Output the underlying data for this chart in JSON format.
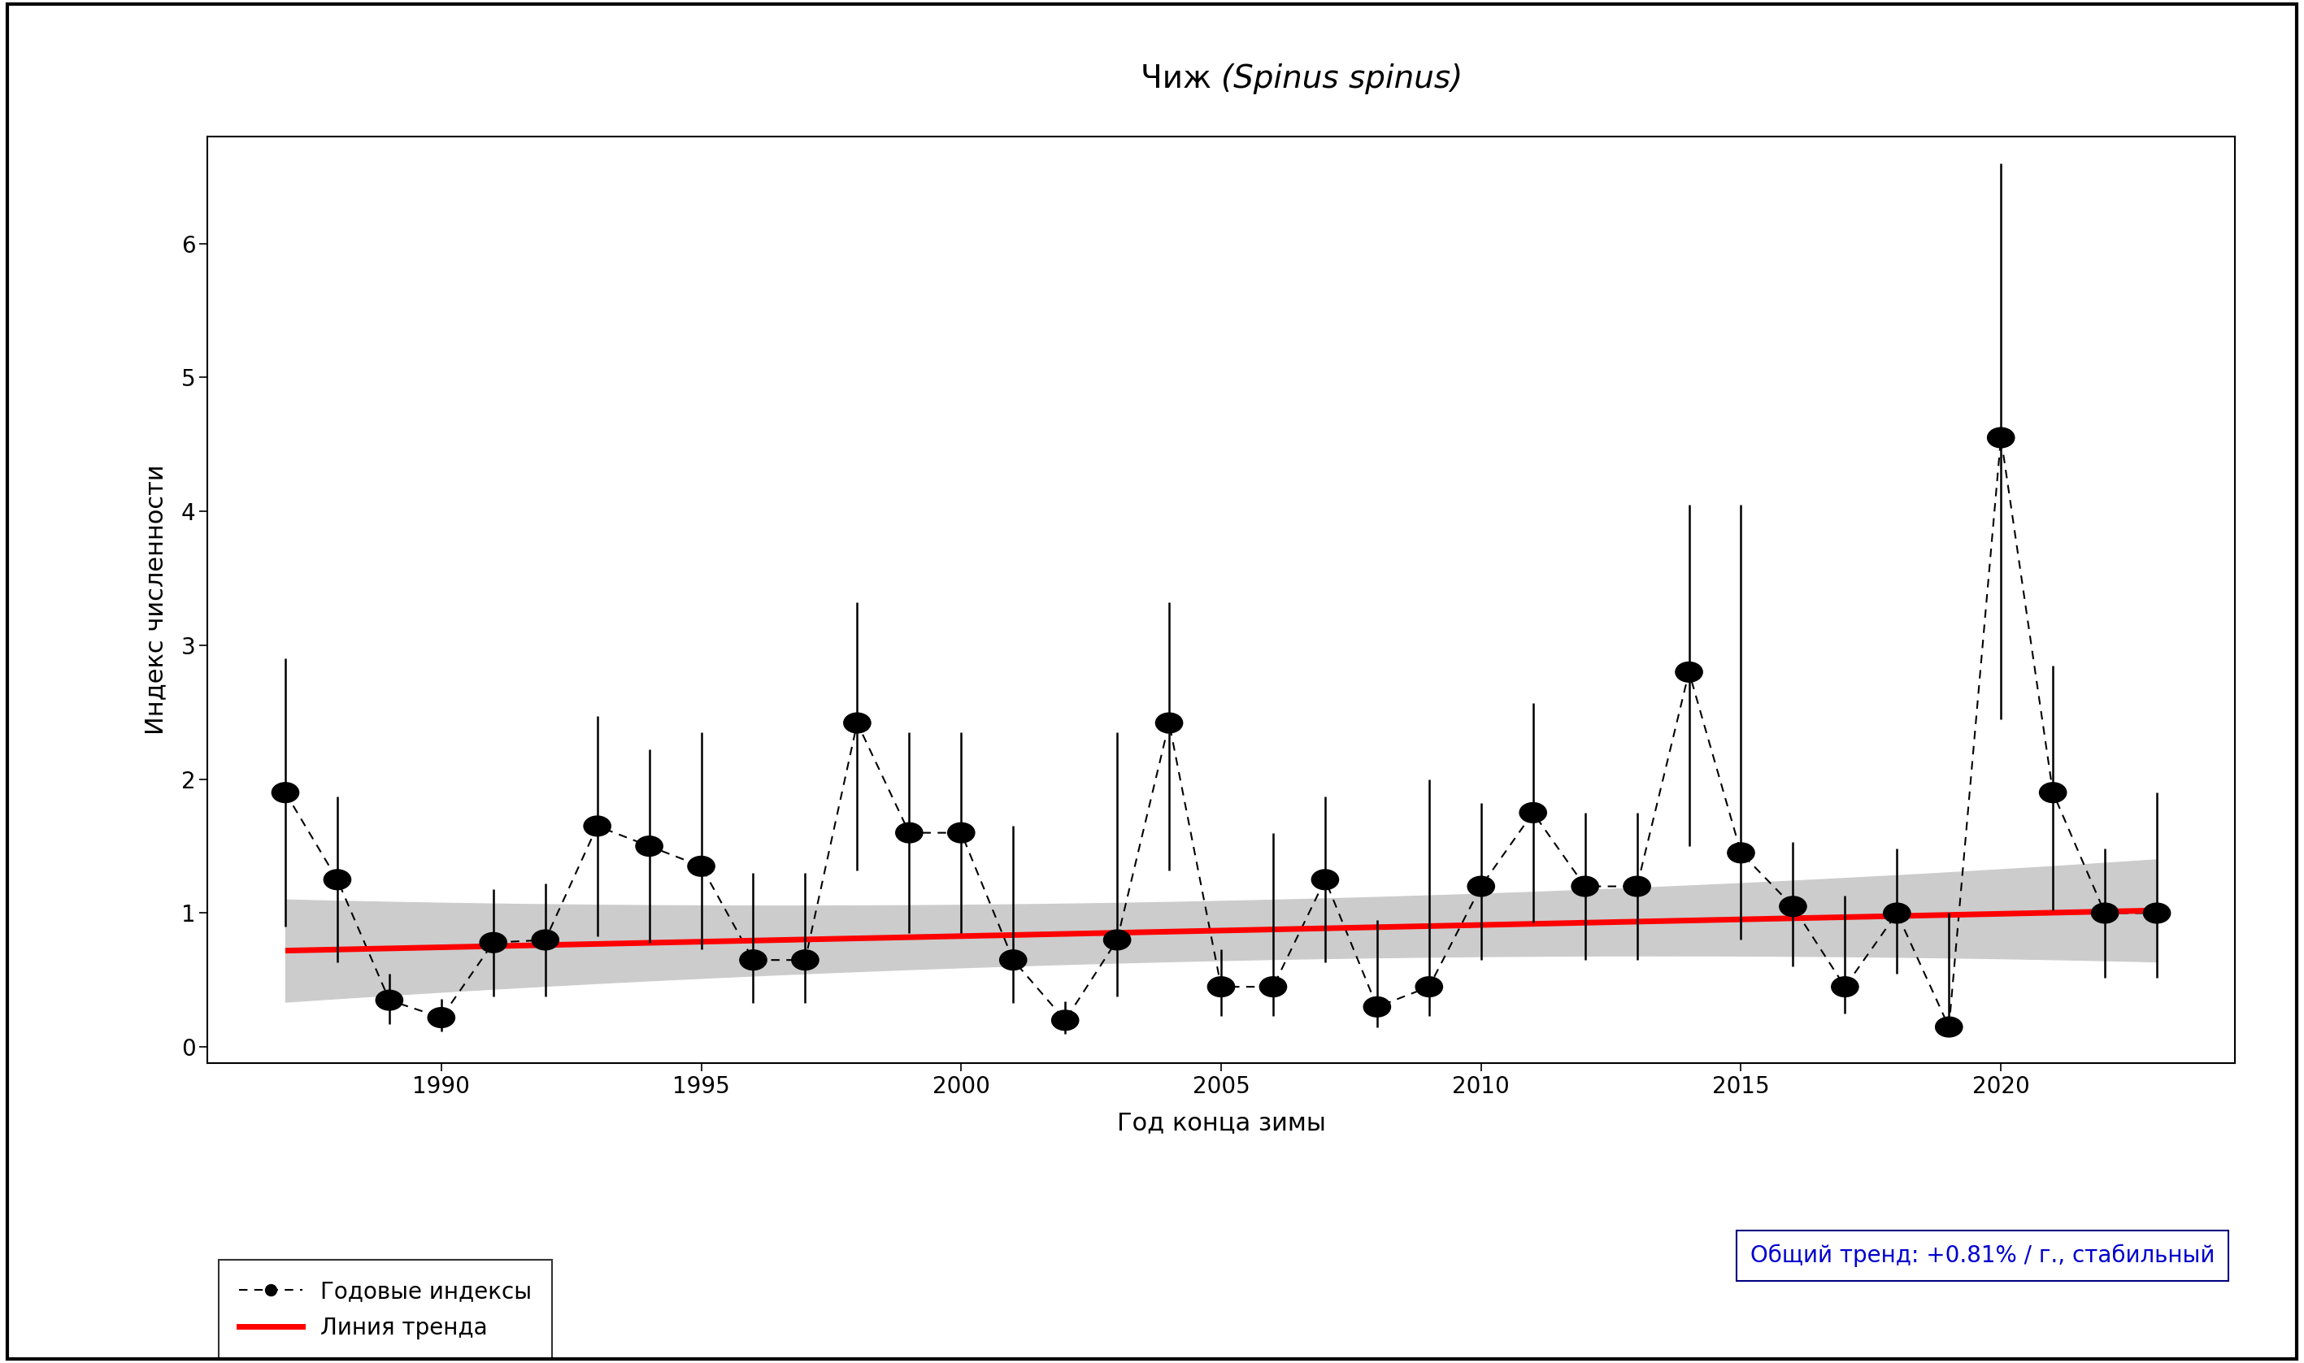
{
  "title_normal": "Чиж ",
  "title_italic": "(Spinus spinus)",
  "xlabel": "Год конца зимы",
  "ylabel": "Индекс численности",
  "years": [
    1987,
    1988,
    1989,
    1990,
    1991,
    1992,
    1993,
    1994,
    1995,
    1996,
    1997,
    1998,
    1999,
    2000,
    2001,
    2002,
    2003,
    2004,
    2005,
    2006,
    2007,
    2008,
    2009,
    2010,
    2011,
    2012,
    2013,
    2014,
    2015,
    2016,
    2017,
    2018,
    2019,
    2020,
    2021,
    2022,
    2023
  ],
  "values": [
    1.9,
    1.25,
    0.35,
    0.22,
    0.78,
    0.8,
    1.65,
    1.5,
    1.35,
    0.65,
    0.65,
    2.42,
    1.6,
    1.6,
    0.65,
    0.2,
    0.8,
    2.42,
    0.45,
    0.45,
    1.25,
    0.3,
    0.45,
    1.2,
    1.75,
    1.2,
    1.2,
    2.8,
    1.45,
    1.05,
    0.45,
    1.0,
    0.15,
    4.55,
    1.9,
    1.0,
    1.0
  ],
  "err_low": [
    1.0,
    0.62,
    0.18,
    0.1,
    0.4,
    0.42,
    0.82,
    0.72,
    0.62,
    0.32,
    0.32,
    1.1,
    0.75,
    0.75,
    0.32,
    0.1,
    0.42,
    1.1,
    0.22,
    0.22,
    0.62,
    0.15,
    0.22,
    0.55,
    0.82,
    0.55,
    0.55,
    1.3,
    0.65,
    0.45,
    0.2,
    0.45,
    0.05,
    2.1,
    0.88,
    0.48,
    0.48
  ],
  "err_high": [
    1.0,
    0.62,
    0.2,
    0.14,
    0.4,
    0.42,
    0.82,
    0.72,
    1.0,
    0.65,
    0.65,
    0.9,
    0.75,
    0.75,
    1.0,
    0.14,
    1.55,
    0.9,
    0.28,
    1.15,
    0.62,
    0.65,
    1.55,
    0.62,
    0.82,
    0.55,
    0.55,
    1.25,
    2.6,
    0.48,
    0.68,
    0.48,
    0.85,
    2.05,
    0.95,
    0.48,
    0.9
  ],
  "trend_x": [
    1987,
    2023
  ],
  "trend_y": [
    0.72,
    1.02
  ],
  "ci_low": [
    0.4,
    0.6
  ],
  "ci_high": [
    1.05,
    1.5
  ],
  "xlim": [
    1985.5,
    2024.5
  ],
  "ylim": [
    -0.12,
    6.8
  ],
  "yticks": [
    0,
    1,
    2,
    3,
    4,
    5,
    6
  ],
  "xticks": [
    1990,
    1995,
    2000,
    2005,
    2010,
    2015,
    2020
  ],
  "legend_line_label": "Годовые индексы",
  "legend_trend_label": "Линия тренда",
  "trend_text": "Общий тренд: +0.81% / г., стабильный",
  "trend_text_color": "#0000CC",
  "marker_color": "#000000",
  "trend_line_color": "#FF0000",
  "ci_color": "#CCCCCC",
  "outer_border_color": "#000000",
  "title_fontsize": 28,
  "label_fontsize": 22,
  "tick_fontsize": 20,
  "legend_fontsize": 20
}
